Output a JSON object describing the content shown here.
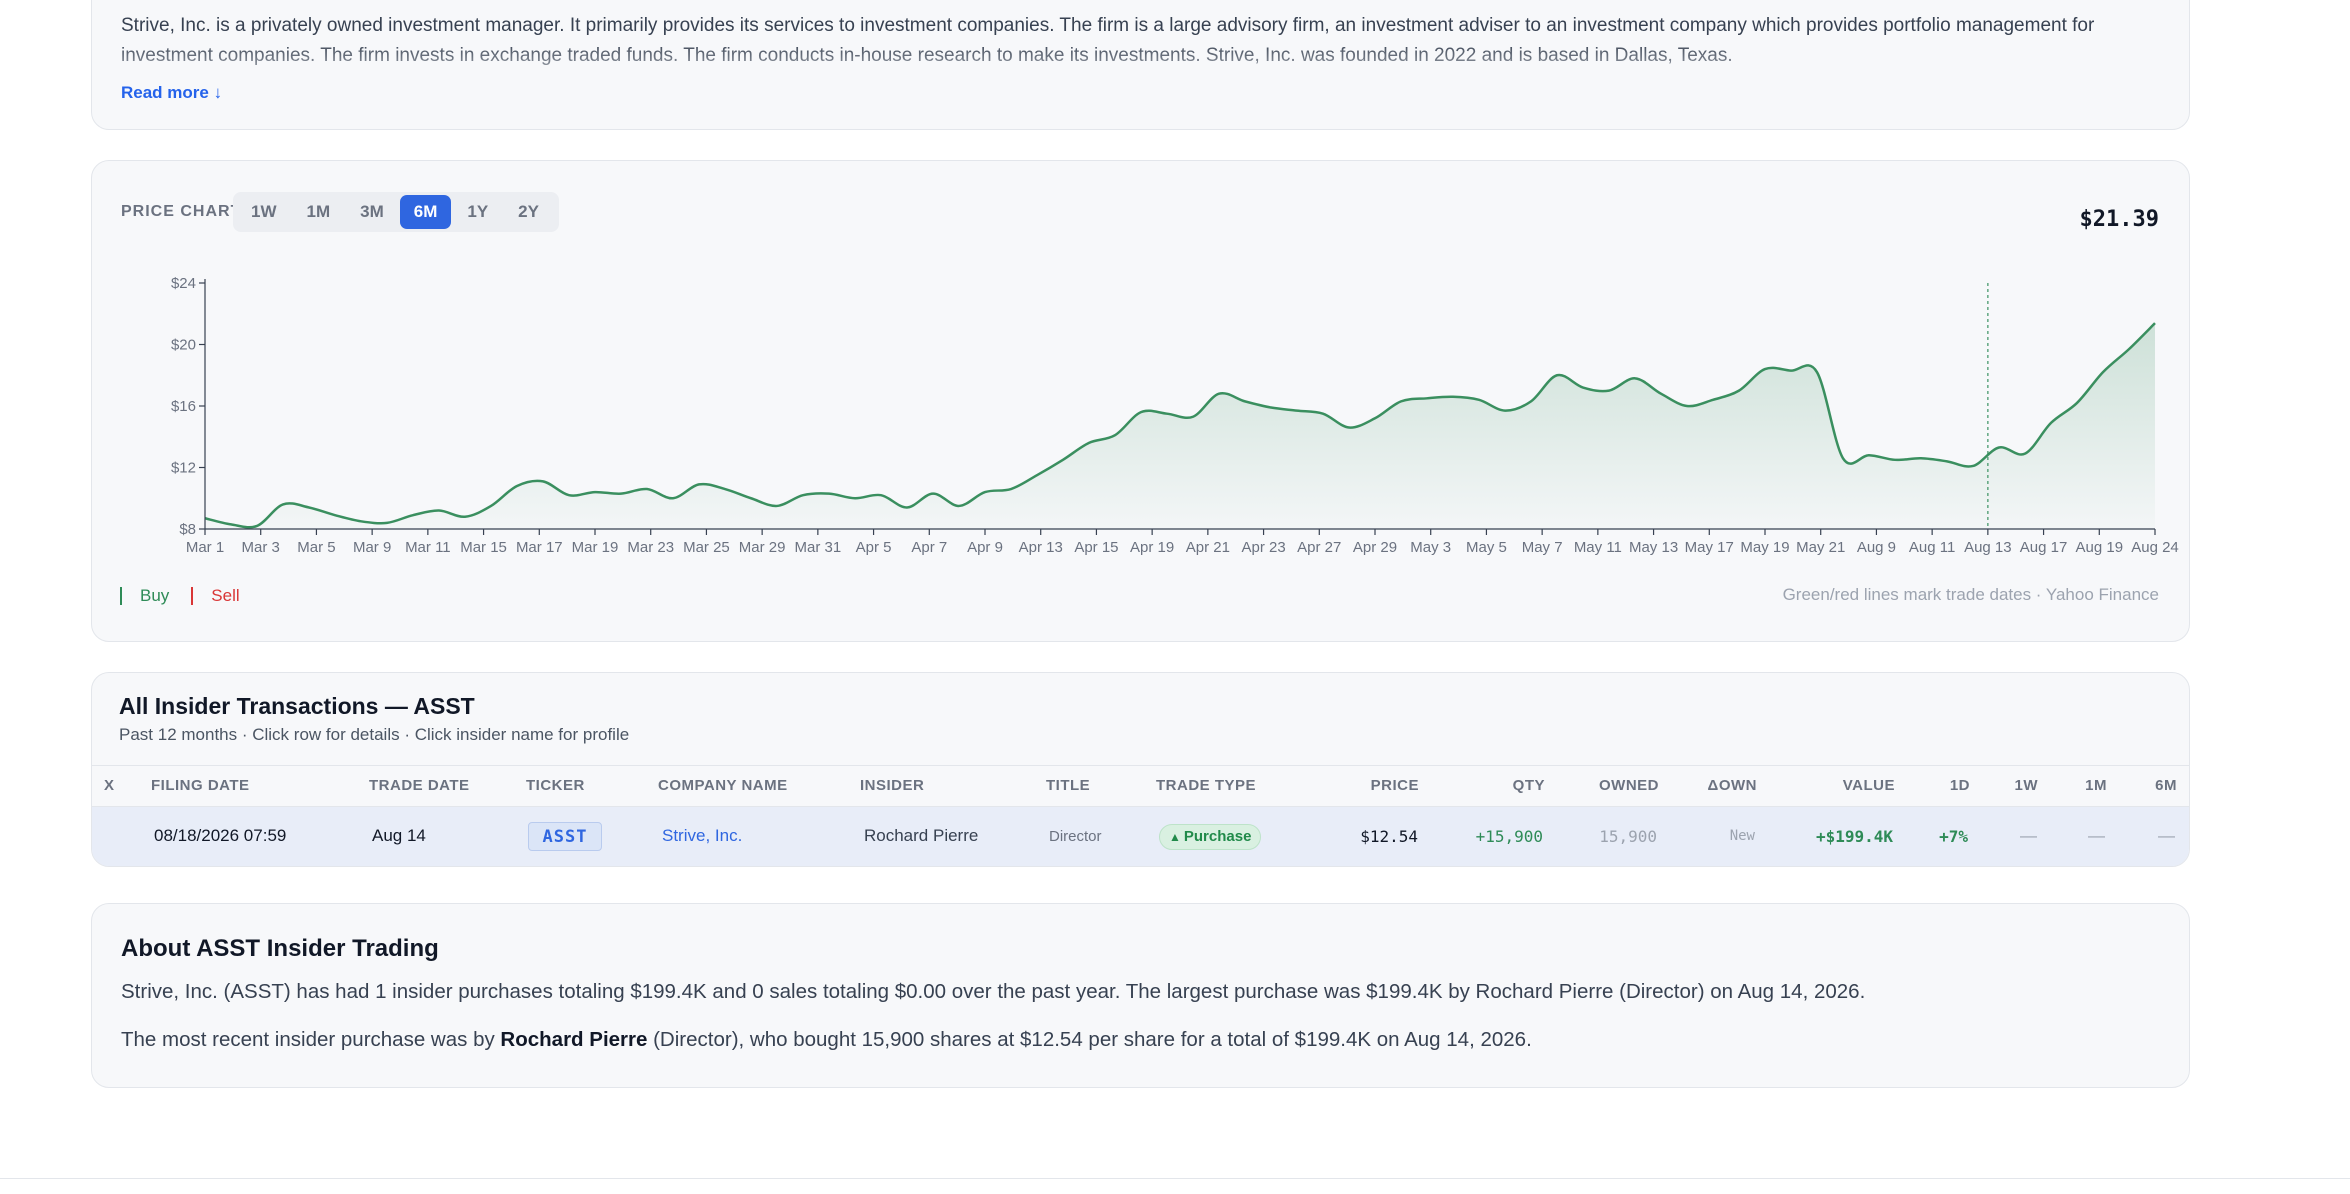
{
  "description": {
    "text": "Strive, Inc. is a privately owned investment manager. It primarily provides its services to investment companies. The firm is a large advisory firm, an investment adviser to an investment company which provides portfolio management for investment companies. The firm invests in exchange traded funds. The firm conducts in-house research to make its investments. Strive, Inc. was founded in 2022 and is based in Dallas, Texas.",
    "read_more": "Read more ↓"
  },
  "price_chart": {
    "label": "PRICE CHART",
    "ranges": [
      "1W",
      "1M",
      "3M",
      "6M",
      "1Y",
      "2Y"
    ],
    "active_range": "6M",
    "current_price": "$21.39",
    "legend": {
      "buy": "Buy",
      "sell": "Sell"
    },
    "note": "Green/red lines mark trade dates · Yahoo Finance",
    "colors": {
      "line": "#3a8f5f",
      "buy": "#2e8b57",
      "sell": "#d93636",
      "accent": "#2f66e0"
    }
  },
  "chart_data": {
    "type": "area",
    "ylim": [
      8,
      24
    ],
    "yticks": [
      8,
      12,
      16,
      20,
      24
    ],
    "ytick_labels": [
      "$8",
      "$12",
      "$16",
      "$20",
      "$24"
    ],
    "xtick_labels": [
      "Mar 1",
      "Mar 3",
      "Mar 5",
      "Mar 9",
      "Mar 11",
      "Mar 15",
      "Mar 17",
      "Mar 19",
      "Mar 23",
      "Mar 25",
      "Mar 29",
      "Mar 31",
      "Apr 5",
      "Apr 7",
      "Apr 9",
      "Apr 13",
      "Apr 15",
      "Apr 19",
      "Apr 21",
      "Apr 23",
      "Apr 27",
      "Apr 29",
      "May 3",
      "May 5",
      "May 7",
      "May 11",
      "May 13",
      "May 17",
      "May 19",
      "May 21",
      "Aug 9",
      "Aug 11",
      "Aug 13",
      "Aug 17",
      "Aug 19",
      "Aug 24"
    ],
    "series": [
      {
        "values": [
          8.7,
          8.3,
          8.2,
          9.6,
          9.4,
          8.9,
          8.5,
          8.4,
          8.9,
          9.2,
          8.8,
          9.5,
          10.8,
          11.1,
          10.2,
          10.4,
          10.3,
          10.6,
          10.0,
          10.9,
          10.6,
          10.0,
          9.5,
          10.2,
          10.3,
          10.0,
          10.2,
          9.4,
          10.3,
          9.5,
          10.4,
          10.6,
          11.5,
          12.5,
          13.6,
          14.1,
          15.6,
          15.5,
          15.3,
          16.8,
          16.3,
          15.9,
          15.7,
          15.5,
          14.6,
          15.2,
          16.3,
          16.5,
          16.6,
          16.4,
          15.7,
          16.3,
          18.0,
          17.2,
          17.0,
          17.8,
          16.8,
          16.0,
          16.4,
          17.0,
          18.4,
          18.3,
          18.2,
          12.6,
          12.8,
          12.5,
          12.6,
          12.4,
          12.1,
          13.3,
          12.9,
          14.9,
          16.2,
          18.2,
          19.7,
          21.39
        ]
      }
    ],
    "trade_marker": {
      "date": "Aug 14",
      "type": "buy"
    },
    "grid": false
  },
  "transactions": {
    "title": "All Insider Transactions — ASST",
    "subtitle": "Past 12 months · Click row for details · Click insider name for profile",
    "columns": {
      "x": "X",
      "filing_date": "FILING DATE",
      "trade_date": "TRADE DATE",
      "ticker": "TICKER",
      "company": "COMPANY NAME",
      "insider": "INSIDER",
      "title": "TITLE",
      "trade_type": "TRADE TYPE",
      "price": "PRICE",
      "qty": "QTY",
      "owned": "OWNED",
      "d_own": "ΔOWN",
      "value": "VALUE",
      "d1": "1D",
      "w1": "1W",
      "m1": "1M",
      "m6": "6M"
    },
    "rows": [
      {
        "x": "",
        "filing_date": "08/18/2026 07:59",
        "trade_date": "Aug 14",
        "ticker": "ASST",
        "company": "Strive, Inc.",
        "insider": "Rochard Pierre",
        "title": "Director",
        "trade_type": "Purchase",
        "trade_type_icon": "▲",
        "price": "$12.54",
        "qty": "+15,900",
        "owned": "15,900",
        "d_own": "New",
        "value": "+$199.4K",
        "d1": "+7%",
        "w1": "—",
        "m1": "—",
        "m6": "—"
      }
    ]
  },
  "about": {
    "title": "About ASST Insider Trading",
    "p1": "Strive, Inc. (ASST) has had 1 insider purchases totaling $199.4K and 0 sales totaling $0.00 over the past year. The largest purchase was $199.4K by Rochard Pierre (Director) on Aug 14, 2026.",
    "p2_pre": "The most recent insider purchase was by ",
    "p2_name": "Rochard Pierre",
    "p2_post": " (Director), who bought 15,900 shares at $12.54 per share for a total of $199.4K on Aug 14, 2026."
  }
}
